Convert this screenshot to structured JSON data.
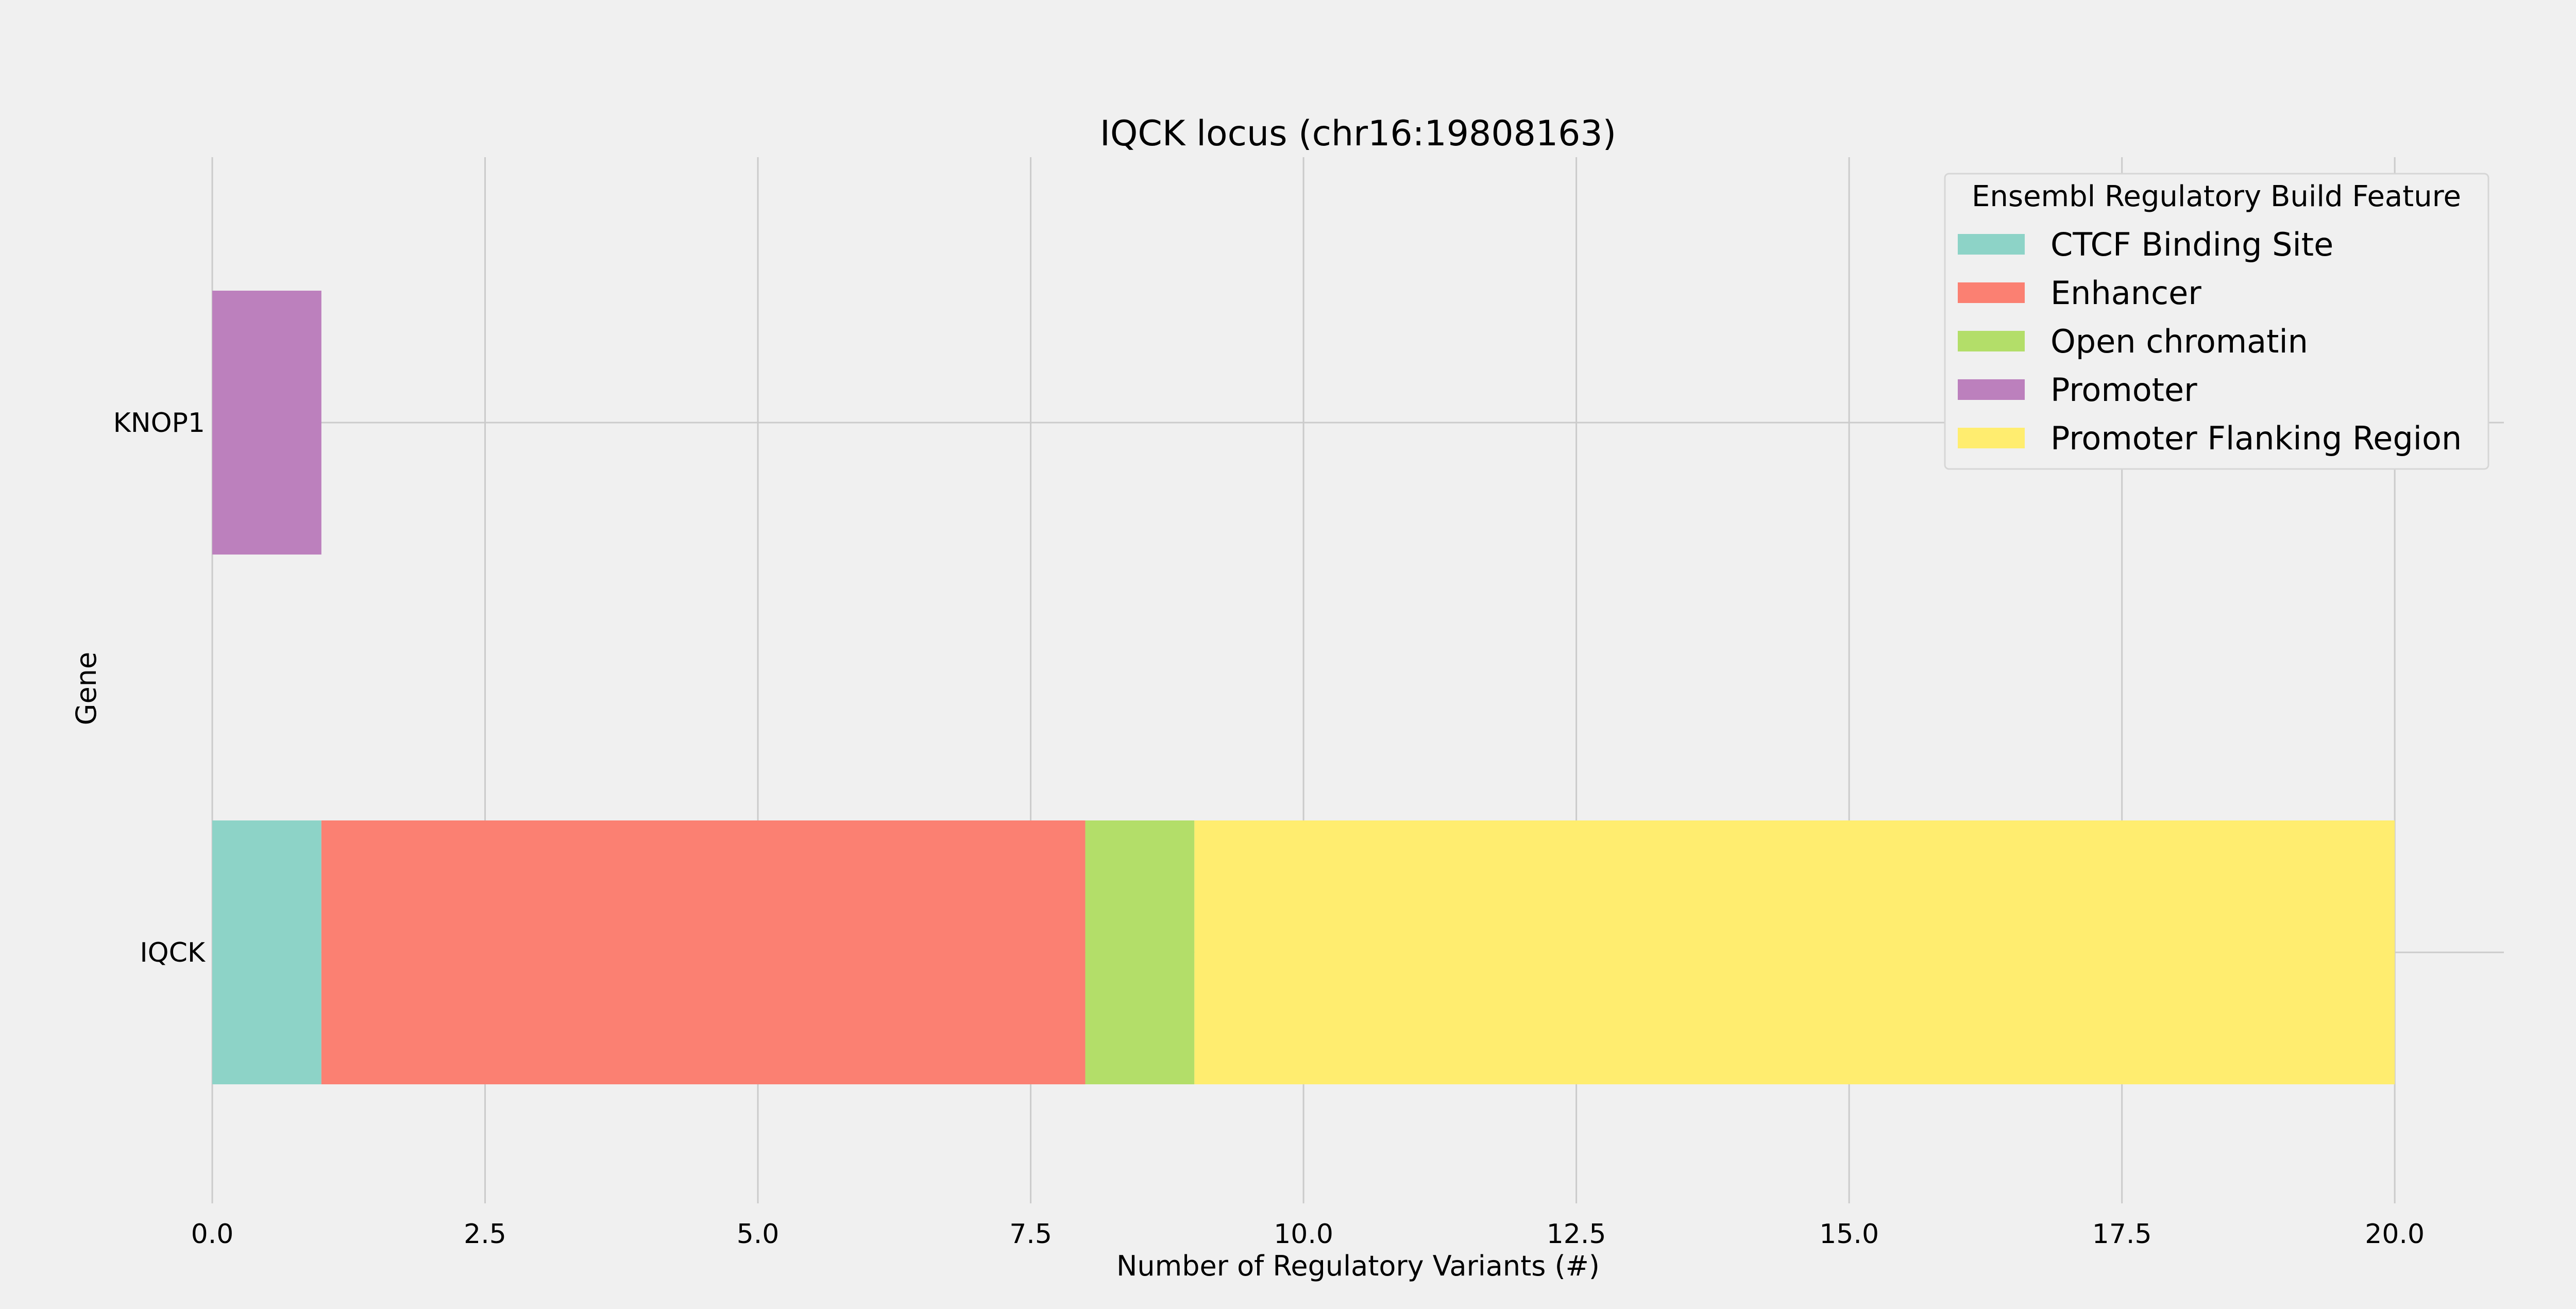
{
  "chart_data": {
    "type": "bar",
    "orientation": "horizontal",
    "stacked": true,
    "title": "IQCK locus (chr16:19808163)",
    "xlabel": "Number of Regulatory Variants (#)",
    "ylabel": "Gene",
    "xlim": [
      0,
      21
    ],
    "xticks": [
      "0.0",
      "2.5",
      "5.0",
      "7.5",
      "10.0",
      "12.5",
      "15.0",
      "17.5",
      "20.0"
    ],
    "xtick_values": [
      0,
      2.5,
      5,
      7.5,
      10,
      12.5,
      15,
      17.5,
      20
    ],
    "categories": [
      "KNOP1",
      "IQCK"
    ],
    "series": [
      {
        "name": "CTCF Binding Site",
        "color": "#8dd3c7",
        "values": [
          0,
          1
        ]
      },
      {
        "name": "Enhancer",
        "color": "#fb8072",
        "values": [
          0,
          7
        ]
      },
      {
        "name": "Open chromatin",
        "color": "#b3de69",
        "values": [
          0,
          1
        ]
      },
      {
        "name": "Promoter",
        "color": "#bc80bd",
        "values": [
          1,
          0
        ]
      },
      {
        "name": "Promoter Flanking Region",
        "color": "#ffed6f",
        "values": [
          0,
          11
        ]
      }
    ],
    "legend": {
      "title": "Ensembl Regulatory Build Feature",
      "location": "top-right"
    },
    "grid": true
  }
}
